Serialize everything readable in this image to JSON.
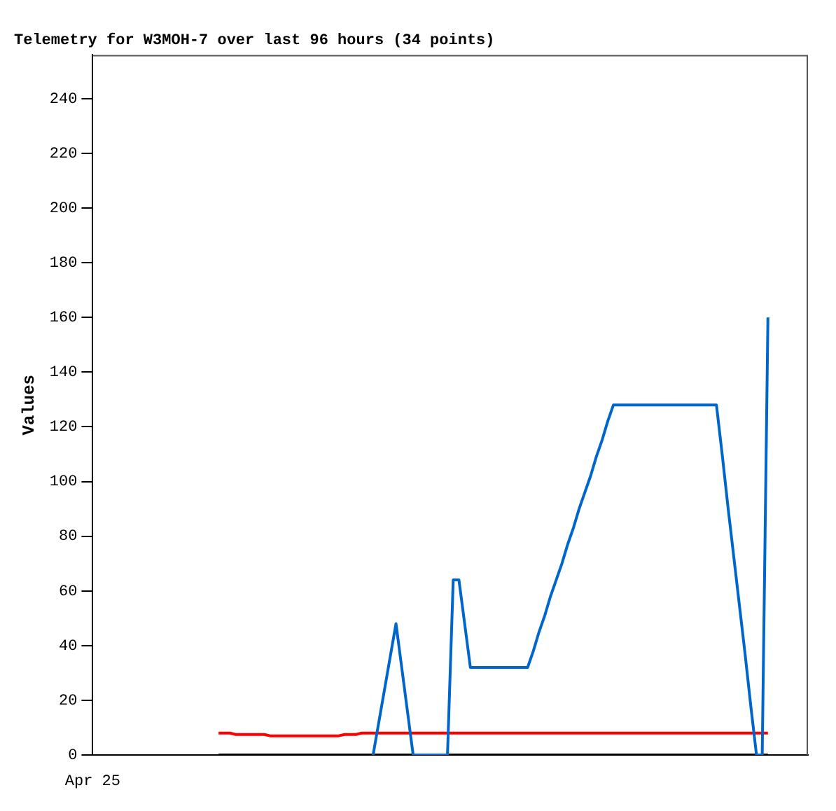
{
  "chart_data": {
    "type": "line",
    "title": "Telemetry for W3MOH-7 over last 96 hours (34 points)",
    "ylabel": "Values",
    "categories": [
      "Apr 25",
      null,
      null,
      null,
      null,
      null,
      null,
      null,
      null,
      null,
      null,
      null,
      null,
      null,
      null,
      null,
      null,
      null,
      null,
      null,
      null,
      null,
      null,
      null,
      null,
      null,
      null,
      null,
      null,
      null,
      null,
      null,
      null,
      null,
      null,
      null,
      null,
      null,
      null,
      null,
      null,
      null,
      null,
      null,
      null,
      null,
      null,
      null,
      null,
      null,
      null,
      null,
      null,
      null,
      null,
      null,
      null,
      null,
      null,
      null,
      null,
      null,
      null,
      null,
      null,
      null,
      null,
      null,
      null,
      null,
      null,
      null,
      null,
      null,
      null,
      null,
      null,
      null,
      null,
      null,
      null,
      null,
      null,
      null,
      null,
      null,
      null,
      null,
      null,
      null,
      null,
      null,
      null,
      null,
      null,
      null,
      null,
      null,
      null,
      null,
      null,
      null,
      null,
      null,
      null,
      null,
      null,
      null,
      null,
      null,
      null,
      null,
      null,
      null,
      null,
      null,
      null,
      null,
      null,
      null,
      null,
      null,
      null,
      null,
      null,
      null
    ],
    "ylim": [
      0,
      256
    ],
    "yticks": [
      0,
      20,
      40,
      60,
      80,
      100,
      120,
      140,
      160,
      180,
      200,
      220,
      240
    ],
    "grid": false,
    "legend": false,
    "marker": "none",
    "line_style": "solid",
    "series": [
      {
        "color": "#0066cc",
        "values": [
          null,
          null,
          null,
          null,
          null,
          null,
          null,
          null,
          null,
          null,
          null,
          null,
          null,
          null,
          null,
          null,
          null,
          null,
          null,
          null,
          null,
          null,
          null,
          null,
          null,
          null,
          null,
          null,
          null,
          null,
          null,
          null,
          null,
          null,
          null,
          null,
          null,
          null,
          null,
          null,
          null,
          null,
          null,
          null,
          null,
          null,
          null,
          null,
          null,
          0,
          12,
          24,
          36,
          48,
          32,
          16,
          0,
          0,
          0,
          0,
          0,
          0,
          0,
          64,
          64,
          48,
          32,
          32,
          32,
          32,
          32,
          32,
          32,
          32,
          32,
          32,
          32,
          38,
          45,
          51,
          58,
          64,
          70,
          77,
          83,
          90,
          96,
          102,
          109,
          115,
          122,
          128,
          128,
          128,
          128,
          128,
          128,
          128,
          128,
          128,
          128,
          128,
          128,
          128,
          128,
          128,
          128,
          128,
          128,
          128,
          110,
          91,
          73,
          55,
          37,
          18,
          0,
          0,
          160,
          null,
          null,
          null,
          null,
          null,
          null,
          null
        ]
      },
      {
        "color": "#ff0000",
        "values": [
          null,
          null,
          null,
          null,
          null,
          null,
          null,
          null,
          null,
          null,
          null,
          null,
          null,
          null,
          null,
          null,
          null,
          null,
          null,
          null,
          null,
          null,
          8,
          8,
          8,
          7.5,
          7.5,
          7.5,
          7.5,
          7.5,
          7.5,
          7,
          7,
          7,
          7,
          7,
          7,
          7,
          7,
          7,
          7,
          7,
          7,
          7,
          7.5,
          7.5,
          7.5,
          8,
          8,
          8,
          8,
          8,
          8,
          8,
          8,
          8,
          8,
          8,
          8,
          8,
          8,
          8,
          8,
          8,
          8,
          8,
          8,
          8,
          8,
          8,
          8,
          8,
          8,
          8,
          8,
          8,
          8,
          8,
          8,
          8,
          8,
          8,
          8,
          8,
          8,
          8,
          8,
          8,
          8,
          8,
          8,
          8,
          8,
          8,
          8,
          8,
          8,
          8,
          8,
          8,
          8,
          8,
          8,
          8,
          8,
          8,
          8,
          8,
          8,
          8,
          8,
          8,
          8,
          8,
          8,
          8,
          8,
          8,
          8,
          null,
          null,
          null,
          null,
          null,
          null,
          null
        ]
      },
      {
        "color": "#000000",
        "values": [
          null,
          null,
          null,
          null,
          null,
          null,
          null,
          null,
          null,
          null,
          null,
          null,
          null,
          null,
          null,
          null,
          null,
          null,
          null,
          null,
          null,
          null,
          0,
          0,
          0,
          0,
          0,
          0,
          0,
          0,
          0,
          0,
          0,
          0,
          0,
          0,
          0,
          0,
          0,
          0,
          0,
          0,
          0,
          0,
          0,
          0,
          0,
          0,
          0,
          0,
          0,
          0,
          0,
          0,
          0,
          0,
          0,
          0,
          0,
          0,
          0,
          0,
          0,
          0,
          0,
          0,
          0,
          0,
          0,
          0,
          0,
          0,
          0,
          0,
          0,
          0,
          0,
          0,
          0,
          0,
          0,
          0,
          0,
          0,
          0,
          0,
          0,
          0,
          0,
          0,
          0,
          0,
          0,
          0,
          0,
          0,
          0,
          0,
          0,
          0,
          0,
          0,
          0,
          0,
          0,
          0,
          0,
          0,
          0,
          0,
          0,
          0,
          0,
          0,
          0,
          0,
          0,
          0,
          0,
          null,
          null,
          null,
          null,
          null,
          null,
          null
        ]
      }
    ]
  }
}
